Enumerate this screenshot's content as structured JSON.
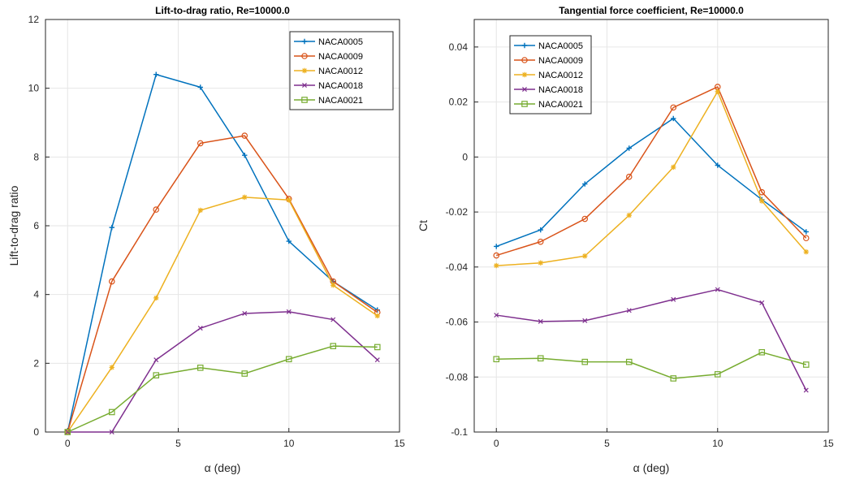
{
  "chart_data": [
    {
      "type": "line",
      "title": "Lift-to-drag ratio, Re=10000.0",
      "xlabel": "α (deg)",
      "ylabel": "Lift-to-drag ratio",
      "xlim": [
        -1,
        15
      ],
      "ylim": [
        0,
        12
      ],
      "xticks": [
        "0",
        "5",
        "10",
        "15"
      ],
      "yticks": [
        "0",
        "2",
        "4",
        "6",
        "8",
        "10",
        "12"
      ],
      "grid": true,
      "legend_position": "top-right",
      "x": [
        0,
        2,
        4,
        6,
        8,
        10,
        12,
        14
      ],
      "series": [
        {
          "name": "NACA0005",
          "color": "#0072BD",
          "marker": "plus",
          "values": [
            0,
            5.95,
            10.4,
            10.03,
            8.05,
            5.55,
            4.38,
            3.55
          ]
        },
        {
          "name": "NACA0009",
          "color": "#D95319",
          "marker": "circle",
          "values": [
            0,
            4.38,
            6.47,
            8.4,
            8.62,
            6.78,
            4.38,
            3.48
          ]
        },
        {
          "name": "NACA0012",
          "color": "#EDB120",
          "marker": "asterisk",
          "values": [
            0,
            1.88,
            3.9,
            6.45,
            6.83,
            6.75,
            4.27,
            3.38
          ]
        },
        {
          "name": "NACA0018",
          "color": "#7E2F8E",
          "marker": "x",
          "values": [
            0,
            0,
            2.1,
            3.02,
            3.45,
            3.5,
            3.27,
            2.1
          ]
        },
        {
          "name": "NACA0021",
          "color": "#77AC30",
          "marker": "square",
          "values": [
            0,
            0.58,
            1.65,
            1.87,
            1.7,
            2.12,
            2.5,
            2.47
          ]
        }
      ]
    },
    {
      "type": "line",
      "title": "Tangential force coefficient, Re=10000.0",
      "xlabel": "α (deg)",
      "ylabel": "Ct",
      "xlim": [
        -1,
        15
      ],
      "ylim": [
        -0.1,
        0.05
      ],
      "xticks": [
        "0",
        "5",
        "10",
        "15"
      ],
      "yticks": [
        "-0.1",
        "-0.08",
        "-0.06",
        "-0.04",
        "-0.02",
        "0",
        "0.02",
        "0.04"
      ],
      "grid": true,
      "legend_position": "top-left",
      "x": [
        0,
        2,
        4,
        6,
        8,
        10,
        12,
        14
      ],
      "series": [
        {
          "name": "NACA0005",
          "color": "#0072BD",
          "marker": "plus",
          "values": [
            -0.0325,
            -0.0265,
            -0.0098,
            0.0032,
            0.014,
            -0.003,
            -0.0155,
            -0.0272
          ]
        },
        {
          "name": "NACA0009",
          "color": "#D95319",
          "marker": "circle",
          "values": [
            -0.0358,
            -0.0308,
            -0.0225,
            -0.0072,
            0.018,
            0.0255,
            -0.0128,
            -0.0295
          ]
        },
        {
          "name": "NACA0012",
          "color": "#EDB120",
          "marker": "asterisk",
          "values": [
            -0.0395,
            -0.0385,
            -0.036,
            -0.0212,
            -0.0037,
            0.0238,
            -0.016,
            -0.0345
          ]
        },
        {
          "name": "NACA0018",
          "color": "#7E2F8E",
          "marker": "x",
          "values": [
            -0.0575,
            -0.0598,
            -0.0595,
            -0.0558,
            -0.0518,
            -0.0482,
            -0.053,
            -0.0848
          ]
        },
        {
          "name": "NACA0021",
          "color": "#77AC30",
          "marker": "square",
          "values": [
            -0.0735,
            -0.0732,
            -0.0745,
            -0.0745,
            -0.0805,
            -0.079,
            -0.071,
            -0.0755
          ]
        }
      ]
    }
  ]
}
